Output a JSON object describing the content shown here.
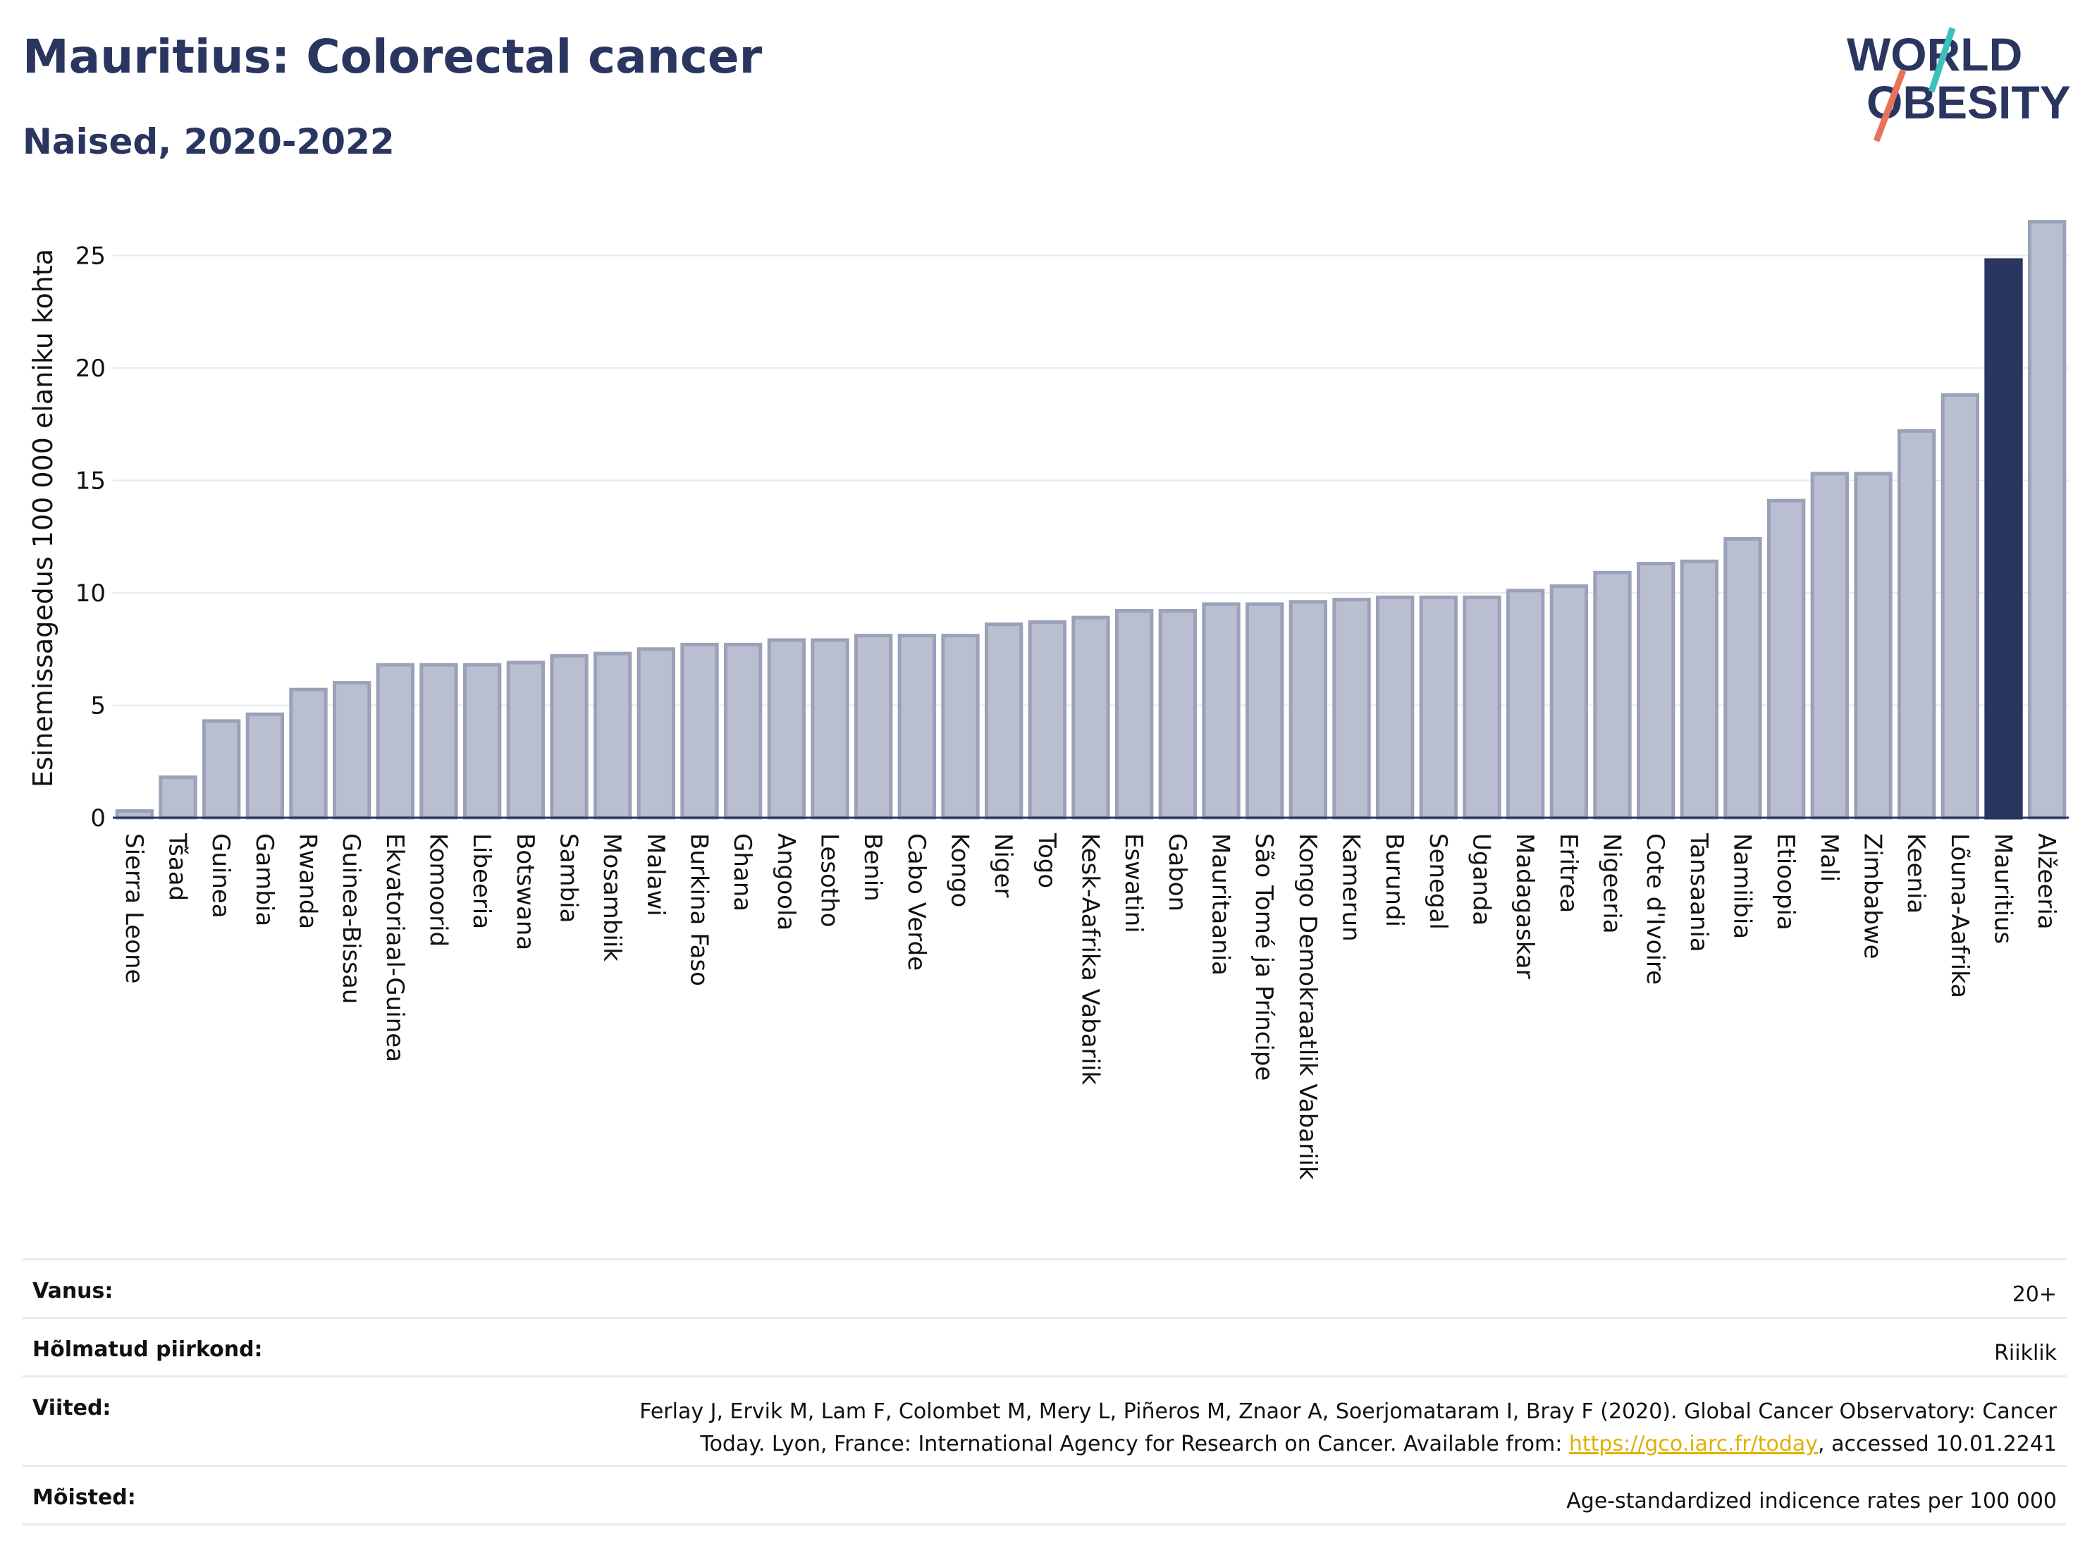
{
  "title": "Mauritius: Colorectal cancer",
  "subtitle": "Naised, 2020-2022",
  "logo": {
    "line1": "WORLD",
    "line2": "OBESITY",
    "accent_teal": "#3bbfbf",
    "accent_coral": "#e8735a"
  },
  "colors": {
    "bar": "#b9bfd0",
    "bar_border": "#9aa1b8",
    "highlight": "#2a3560",
    "grid": "#e6e9ee",
    "axis": "#2a3560"
  },
  "chart_data": {
    "type": "bar",
    "ylabel": "Esinemissagedus 100 000 elaniku kohta",
    "ylim": [
      0,
      27
    ],
    "yticks": [
      0,
      5,
      10,
      15,
      20,
      25
    ],
    "grid": true,
    "highlight": "Mauritius",
    "categories": [
      "Sierra Leone",
      "Tšaad",
      "Guinea",
      "Gambia",
      "Rwanda",
      "Guinea-Bissau",
      "Ekvatoriaal-Guinea",
      "Komoorid",
      "Libeeria",
      "Botswana",
      "Sambia",
      "Mosambiik",
      "Malawi",
      "Burkina Faso",
      "Ghana",
      "Angoola",
      "Lesotho",
      "Benin",
      "Cabo Verde",
      "Kongo",
      "Niger",
      "Togo",
      "Kesk-Aafrika Vabariik",
      "Eswatini",
      "Gabon",
      "Mauritaania",
      "São Tomé ja Príncipe",
      "Kongo Demokraatlik Vabariik",
      "Kamerun",
      "Burundi",
      "Senegal",
      "Uganda",
      "Madagaskar",
      "Eritrea",
      "Nigeeria",
      "Cote d'Ivoire",
      "Tansaania",
      "Namiibia",
      "Etioopia",
      "Mali",
      "Zimbabwe",
      "Keenia",
      "Lõuna-Aafrika",
      "Mauritius",
      "Alžeeria"
    ],
    "values": [
      0.3,
      1.8,
      4.3,
      4.6,
      5.7,
      6.0,
      6.8,
      6.8,
      6.8,
      6.9,
      7.2,
      7.3,
      7.5,
      7.7,
      7.7,
      7.9,
      7.9,
      8.1,
      8.1,
      8.1,
      8.6,
      8.7,
      8.9,
      9.2,
      9.2,
      9.5,
      9.5,
      9.6,
      9.7,
      9.8,
      9.8,
      9.8,
      10.1,
      10.3,
      10.9,
      11.3,
      11.4,
      12.4,
      14.1,
      15.3,
      15.3,
      17.2,
      18.8,
      24.8,
      26.5
    ]
  },
  "footer": {
    "age_label": "Vanus:",
    "age_value": "20+",
    "regions_label": "Hõlmatud piirkond:",
    "regions_value": "Riiklik",
    "refs_label": "Viited:",
    "refs_line1": "Ferlay J, Ervik M, Lam F, Colombet M, Mery L, Piñeros M, Znaor A, Soerjomataram I, Bray F (2020). Global Cancer Observatory: Cancer",
    "refs_line2_pre": "Today. Lyon, France: International Agency for Research on Cancer. Available from: ",
    "refs_link": "https://gco.iarc.fr/today",
    "refs_line2_post": ", accessed 10.01.2241",
    "defs_label": "Mõisted:",
    "defs_value": "Age-standardized indicence rates per 100 000"
  }
}
